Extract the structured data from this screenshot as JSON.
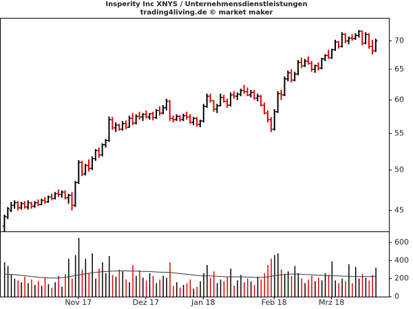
{
  "chart_data": [
    {
      "type": "ohlc",
      "title": "Insperity Inc XNYS / Unternehmensdienstleistungen",
      "subtitle": "trading4living.de © market maker",
      "log": true,
      "ylim": [
        42.6,
        74.2
      ],
      "yticks": [
        45,
        50,
        55,
        60,
        65,
        70
      ],
      "xlim": [
        -1,
        114
      ],
      "xticks": [
        {
          "value": 22,
          "label": "Nov 17"
        },
        {
          "value": 42,
          "label": "Dez 17"
        },
        {
          "value": 59,
          "label": "Jan 18"
        },
        {
          "value": 80,
          "label": "Feb 18"
        },
        {
          "value": 97,
          "label": "Mrz 18"
        }
      ],
      "up_color": "#000000",
      "down_color": "#e00000",
      "ohlc": [
        [
          43.2,
          44.5,
          42.6,
          44.3
        ],
        [
          44.2,
          45.4,
          44.0,
          45.2
        ],
        [
          45.0,
          46.0,
          44.8,
          45.6
        ],
        [
          45.6,
          46.2,
          45.2,
          45.9
        ],
        [
          45.9,
          46.1,
          45.0,
          45.3
        ],
        [
          45.3,
          46.0,
          45.1,
          45.8
        ],
        [
          45.8,
          46.1,
          45.2,
          45.4
        ],
        [
          45.4,
          46.2,
          45.1,
          45.9
        ],
        [
          45.9,
          46.0,
          45.2,
          45.5
        ],
        [
          45.5,
          46.1,
          45.3,
          45.9
        ],
        [
          45.9,
          46.3,
          45.5,
          45.7
        ],
        [
          45.7,
          46.4,
          45.6,
          46.2
        ],
        [
          46.2,
          46.6,
          45.8,
          46.0
        ],
        [
          46.0,
          46.8,
          45.9,
          46.6
        ],
        [
          46.6,
          47.0,
          46.2,
          46.4
        ],
        [
          46.4,
          47.2,
          46.3,
          47.0
        ],
        [
          47.0,
          47.5,
          46.6,
          46.9
        ],
        [
          46.9,
          47.4,
          46.5,
          47.2
        ],
        [
          47.2,
          47.4,
          46.3,
          46.5
        ],
        [
          46.5,
          47.0,
          45.8,
          46.8
        ],
        [
          46.8,
          47.2,
          45.0,
          45.6
        ],
        [
          45.6,
          48.6,
          45.4,
          48.4
        ],
        [
          48.4,
          51.3,
          48.2,
          51.0
        ],
        [
          51.0,
          51.2,
          49.2,
          49.5
        ],
        [
          49.5,
          50.8,
          49.3,
          50.6
        ],
        [
          50.6,
          51.4,
          49.8,
          50.2
        ],
        [
          50.2,
          51.8,
          50.0,
          51.5
        ],
        [
          51.5,
          52.8,
          51.2,
          52.6
        ],
        [
          52.6,
          53.0,
          51.6,
          52.0
        ],
        [
          52.0,
          53.6,
          51.8,
          53.4
        ],
        [
          53.4,
          54.2,
          53.0,
          54.0
        ],
        [
          54.0,
          57.5,
          53.8,
          57.0
        ],
        [
          57.0,
          57.4,
          55.5,
          55.8
        ],
        [
          55.8,
          56.6,
          55.2,
          56.2
        ],
        [
          56.2,
          56.4,
          55.4,
          55.6
        ],
        [
          55.6,
          56.8,
          55.4,
          56.4
        ],
        [
          56.4,
          56.9,
          55.6,
          55.9
        ],
        [
          55.9,
          57.6,
          55.8,
          57.2
        ],
        [
          57.2,
          58.0,
          56.2,
          56.5
        ],
        [
          56.5,
          57.8,
          56.3,
          57.5
        ],
        [
          57.5,
          58.2,
          57.0,
          57.4
        ],
        [
          57.4,
          58.0,
          56.8,
          57.8
        ],
        [
          57.8,
          58.4,
          57.2,
          57.4
        ],
        [
          57.4,
          58.0,
          57.0,
          57.9
        ],
        [
          57.9,
          58.2,
          56.9,
          57.3
        ],
        [
          57.3,
          58.6,
          57.1,
          58.4
        ],
        [
          58.4,
          59.0,
          57.6,
          58.0
        ],
        [
          58.0,
          59.2,
          57.8,
          58.8
        ],
        [
          58.8,
          60.2,
          58.4,
          59.8
        ],
        [
          59.8,
          60.0,
          56.8,
          57.2
        ],
        [
          57.2,
          57.6,
          56.6,
          57.0
        ],
        [
          57.0,
          57.8,
          56.8,
          57.5
        ],
        [
          57.5,
          57.7,
          56.7,
          57.0
        ],
        [
          57.0,
          57.9,
          56.8,
          57.6
        ],
        [
          57.6,
          58.2,
          57.0,
          57.4
        ],
        [
          57.4,
          57.8,
          56.4,
          56.6
        ],
        [
          56.6,
          57.4,
          56.2,
          57.2
        ],
        [
          57.2,
          57.4,
          56.0,
          56.3
        ],
        [
          56.3,
          57.0,
          55.9,
          56.8
        ],
        [
          56.8,
          59.4,
          56.6,
          59.0
        ],
        [
          59.0,
          61.0,
          58.8,
          60.6
        ],
        [
          60.6,
          61.0,
          59.6,
          59.9
        ],
        [
          59.9,
          60.0,
          58.2,
          58.6
        ],
        [
          58.6,
          59.4,
          58.0,
          59.1
        ],
        [
          59.1,
          61.0,
          59.0,
          60.4
        ],
        [
          60.4,
          60.8,
          59.6,
          59.8
        ],
        [
          59.8,
          60.2,
          58.8,
          59.2
        ],
        [
          59.2,
          61.2,
          59.0,
          60.8
        ],
        [
          60.8,
          61.4,
          60.2,
          60.6
        ],
        [
          60.6,
          61.2,
          60.0,
          60.9
        ],
        [
          60.9,
          61.8,
          60.6,
          61.5
        ],
        [
          61.5,
          62.4,
          61.0,
          61.3
        ],
        [
          61.3,
          62.0,
          60.6,
          60.8
        ],
        [
          60.8,
          61.6,
          60.4,
          61.2
        ],
        [
          61.2,
          61.6,
          60.0,
          60.3
        ],
        [
          60.3,
          61.0,
          59.8,
          60.6
        ],
        [
          60.6,
          60.8,
          59.0,
          59.2
        ],
        [
          59.2,
          59.6,
          57.8,
          58.0
        ],
        [
          58.0,
          58.4,
          56.6,
          57.0
        ],
        [
          57.0,
          57.4,
          55.2,
          55.6
        ],
        [
          55.6,
          58.6,
          55.4,
          58.2
        ],
        [
          58.2,
          61.4,
          58.0,
          61.0
        ],
        [
          61.0,
          61.6,
          60.0,
          60.8
        ],
        [
          60.8,
          63.8,
          60.6,
          63.4
        ],
        [
          63.4,
          64.8,
          63.0,
          64.4
        ],
        [
          64.4,
          65.0,
          62.8,
          63.2
        ],
        [
          63.2,
          64.6,
          63.0,
          64.2
        ],
        [
          64.2,
          66.6,
          64.0,
          66.2
        ],
        [
          66.2,
          67.0,
          65.2,
          65.6
        ],
        [
          65.6,
          66.8,
          65.4,
          66.4
        ],
        [
          66.4,
          67.2,
          65.8,
          66.0
        ],
        [
          66.0,
          66.4,
          64.6,
          65.0
        ],
        [
          65.0,
          65.8,
          64.4,
          65.6
        ],
        [
          65.6,
          66.2,
          64.8,
          65.2
        ],
        [
          65.2,
          67.0,
          65.0,
          66.8
        ],
        [
          66.8,
          67.6,
          66.4,
          67.4
        ],
        [
          67.4,
          68.4,
          66.8,
          67.0
        ],
        [
          67.0,
          68.6,
          66.8,
          68.4
        ],
        [
          68.4,
          70.2,
          68.2,
          69.8
        ],
        [
          69.8,
          70.0,
          68.6,
          69.0
        ],
        [
          69.0,
          71.6,
          68.8,
          71.2
        ],
        [
          71.2,
          71.4,
          69.6,
          70.0
        ],
        [
          70.0,
          70.8,
          69.4,
          70.5
        ],
        [
          70.5,
          71.2,
          70.0,
          70.4
        ],
        [
          70.4,
          71.4,
          70.2,
          71.0
        ],
        [
          71.0,
          72.0,
          70.6,
          71.8
        ],
        [
          71.8,
          71.9,
          69.2,
          69.6
        ],
        [
          69.6,
          71.6,
          69.4,
          71.2
        ],
        [
          71.2,
          71.4,
          68.6,
          69.0
        ],
        [
          69.0,
          70.2,
          67.6,
          68.2
        ],
        [
          68.2,
          70.4,
          68.0,
          70.0
        ]
      ]
    },
    {
      "type": "volume",
      "ylim": [
        0,
        700
      ],
      "yticks": [
        0,
        200,
        400,
        600
      ],
      "xlim": [
        -1,
        114
      ],
      "avg_color": "#333333",
      "values": [
        380,
        340,
        250,
        200,
        180,
        160,
        220,
        150,
        190,
        130,
        170,
        120,
        210,
        140,
        100,
        160,
        230,
        110,
        250,
        420,
        200,
        460,
        650,
        300,
        420,
        260,
        480,
        200,
        310,
        380,
        260,
        450,
        240,
        220,
        300,
        280,
        190,
        160,
        350,
        230,
        290,
        210,
        180,
        260,
        230,
        150,
        190,
        230,
        210,
        380,
        120,
        160,
        100,
        130,
        150,
        190,
        90,
        110,
        170,
        260,
        350,
        210,
        280,
        150,
        190,
        170,
        220,
        310,
        120,
        180,
        240,
        160,
        200,
        170,
        130,
        220,
        190,
        260,
        350,
        420,
        460,
        480,
        300,
        250,
        280,
        230,
        340,
        260,
        200,
        150,
        190,
        230,
        170,
        210,
        180,
        260,
        240,
        390,
        180,
        150,
        200,
        170,
        360,
        150,
        330,
        200,
        250,
        210,
        180,
        240,
        320
      ],
      "average": [
        250,
        248,
        246,
        244,
        240,
        236,
        232,
        228,
        224,
        220,
        216,
        212,
        210,
        208,
        206,
        206,
        208,
        210,
        214,
        220,
        226,
        232,
        240,
        246,
        252,
        258,
        264,
        268,
        272,
        276,
        278,
        280,
        282,
        284,
        286,
        286,
        286,
        284,
        284,
        282,
        282,
        280,
        280,
        278,
        276,
        274,
        272,
        270,
        270,
        268,
        264,
        260,
        256,
        252,
        248,
        244,
        240,
        236,
        232,
        230,
        230,
        230,
        228,
        226,
        224,
        222,
        220,
        220,
        220,
        220,
        218,
        218,
        216,
        216,
        214,
        214,
        214,
        216,
        220,
        226,
        232,
        238,
        242,
        246,
        248,
        250,
        250,
        250,
        248,
        246,
        244,
        242,
        240,
        238,
        236,
        234,
        232,
        232,
        230,
        230,
        228,
        226,
        226,
        224,
        224,
        222,
        222,
        222,
        222,
        224,
        226
      ]
    }
  ]
}
